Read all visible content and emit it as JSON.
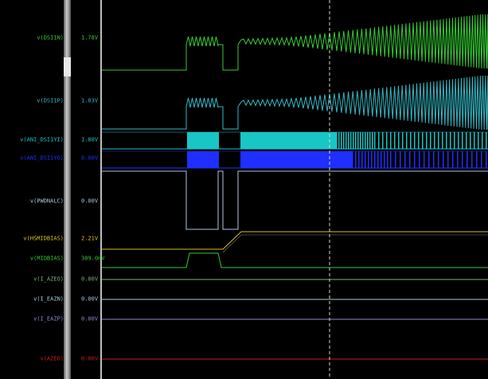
{
  "signals": [
    {
      "name": "v(DSI1N)",
      "value": "1.78V",
      "color": "#33cc33"
    },
    {
      "name": "v(DSI1P)",
      "value": "1.03V",
      "color": "#33b7c4"
    },
    {
      "name": "v(ANI_DSI1YI)",
      "value": "1.80V",
      "color": "#19c6c6"
    },
    {
      "name": "v(ANI_DSI1YO)",
      "value": "0.00V",
      "color": "#1f2fff"
    },
    {
      "name": "v(PWDNALC)",
      "value": "0.00V",
      "color": "#a9c9dc"
    },
    {
      "name": "v(HSMIDBIAS)",
      "value": "2.21V",
      "color": "#d9c21a"
    },
    {
      "name": "v(MIDBIAS)",
      "value": "309.0mV",
      "color": "#32cc32"
    },
    {
      "name": "v(I_AZEO)",
      "value": "0.00V",
      "color": "#7fae7f"
    },
    {
      "name": "v(I_EAZN)",
      "value": "0.00V",
      "color": "#a9c9dc"
    },
    {
      "name": "v(I_EAZP)",
      "value": "0.00V",
      "color": "#8a8ad8"
    },
    {
      "name": "v(AZEO)",
      "value": "0.00V",
      "color": "#cc1a1a"
    }
  ]
}
